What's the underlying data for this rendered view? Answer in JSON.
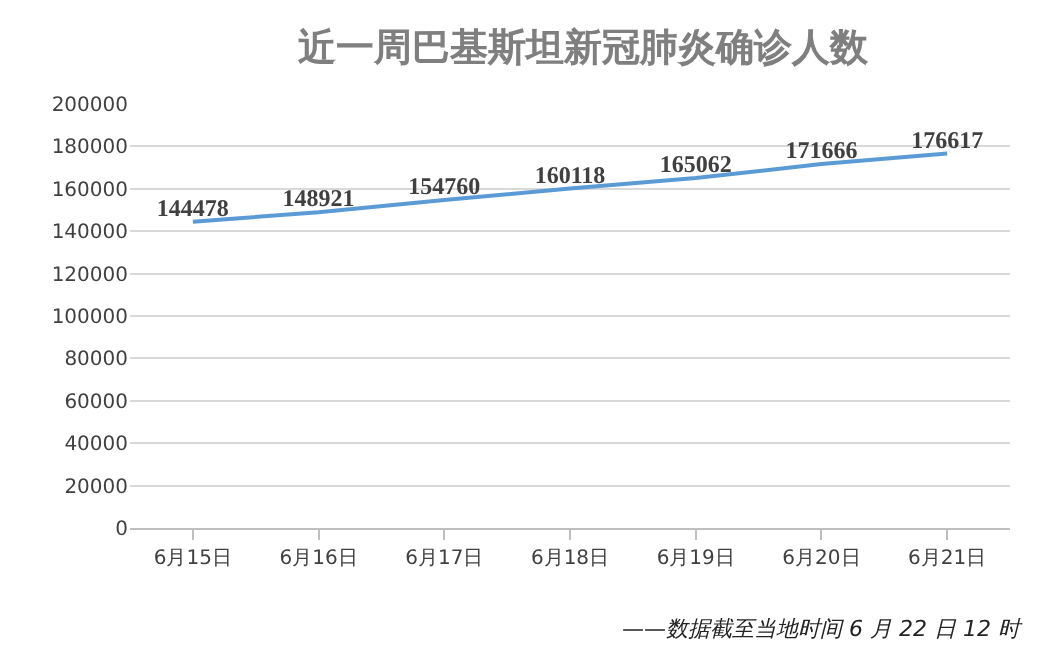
{
  "chart_data": {
    "type": "line",
    "title": "近一周巴基斯坦新冠肺炎确诊人数",
    "categories": [
      "6月15日",
      "6月16日",
      "6月17日",
      "6月18日",
      "6月19日",
      "6月20日",
      "6月21日"
    ],
    "series": [
      {
        "color": "#5b9bd5",
        "values": [
          144478,
          148921,
          154760,
          160118,
          165062,
          171666,
          176617
        ]
      }
    ],
    "ylim": [
      0,
      200000
    ],
    "yticks": [
      0,
      20000,
      40000,
      60000,
      80000,
      100000,
      120000,
      140000,
      160000,
      180000,
      200000
    ],
    "grid": "y",
    "data_labels": true,
    "marker": "none",
    "line_style": "solid",
    "annotations": [
      "——数据截至当地时间 6 月 22 日 12 时"
    ]
  }
}
